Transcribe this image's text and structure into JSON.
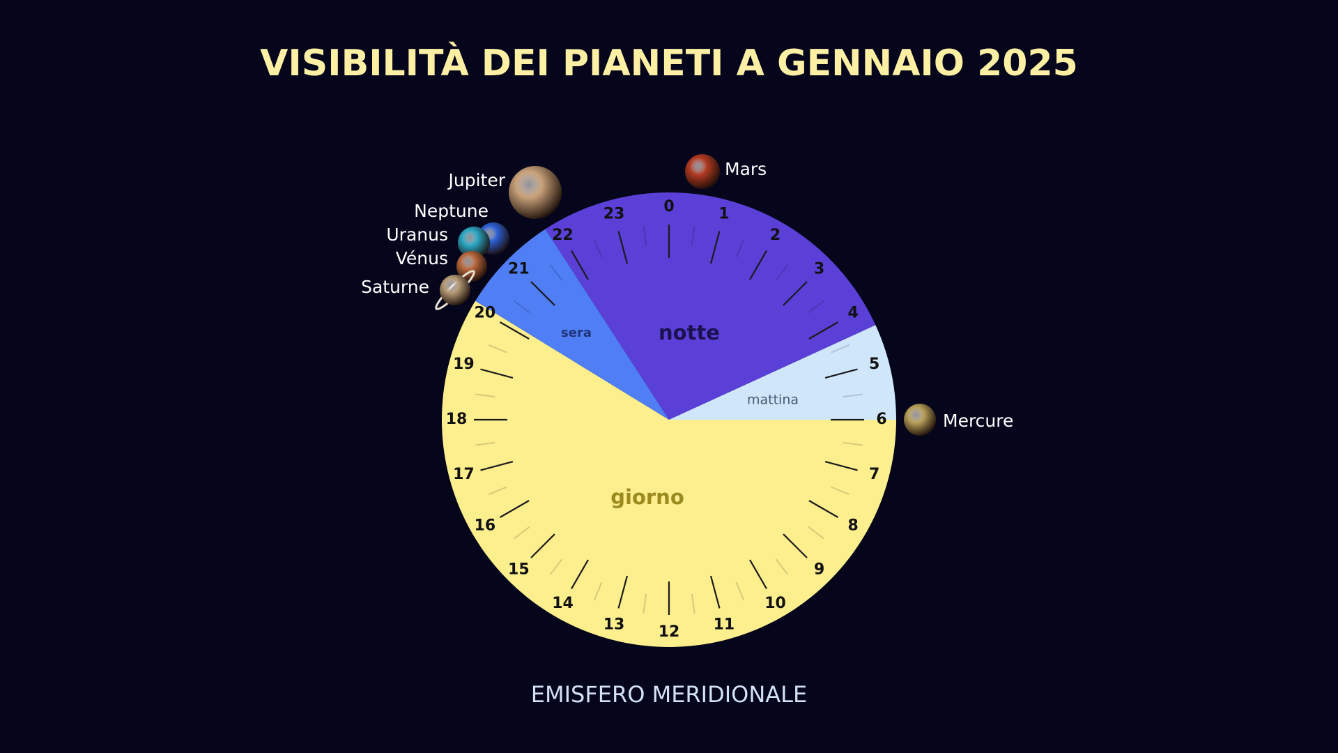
{
  "title": "VISIBILITÀ DEI PIANETI A GENNAIO 2025",
  "subtitle": "EMISFERO MERIDIONALE",
  "hours": [
    0,
    1,
    2,
    3,
    4,
    5,
    6,
    7,
    8,
    9,
    10,
    11,
    12,
    13,
    14,
    15,
    16,
    17,
    18,
    19,
    20,
    21,
    22,
    23
  ],
  "segments": [
    {
      "label": "notte",
      "color": "#5a40d7"
    },
    {
      "label": "mattina",
      "color": "#cfe6fb"
    },
    {
      "label": "giorno",
      "color": "#fdee8e"
    },
    {
      "label": "sera",
      "color": "#4f7ef5"
    }
  ],
  "planets": [
    {
      "name": "Mars",
      "color": "#b23a22"
    },
    {
      "name": "Jupiter",
      "color": "#c9a27a"
    },
    {
      "name": "Neptune",
      "color": "#2c5fd6"
    },
    {
      "name": "Uranus",
      "color": "#2aa6c4"
    },
    {
      "name": "Vénus",
      "color": "#b9683c"
    },
    {
      "name": "Saturne",
      "color": "#b59a76"
    },
    {
      "name": "Mercure",
      "color": "#b8a05a"
    }
  ]
}
